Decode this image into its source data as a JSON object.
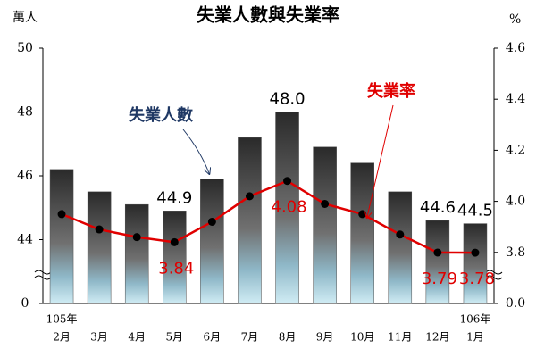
{
  "chart_data": {
    "type": "bar_line",
    "title": "失業人數與失業率",
    "y_label": "萬人",
    "y2_label": "%",
    "categories": [
      "2月",
      "3月",
      "4月",
      "5月",
      "6月",
      "7月",
      "8月",
      "9月",
      "10月",
      "11月",
      "12月",
      "1月"
    ],
    "category_years": [
      "105年",
      null,
      null,
      null,
      null,
      null,
      null,
      null,
      null,
      null,
      null,
      "106年"
    ],
    "ylim": [
      0,
      50
    ],
    "yticks": [
      0,
      44,
      46,
      48,
      50
    ],
    "y2lim": [
      0,
      4.6
    ],
    "y2ticks": [
      {
        "value": 0,
        "label": "0.0"
      },
      3.8,
      {
        "value": 4,
        "label": "4.0"
      },
      4.2,
      4.4,
      4.6
    ],
    "axis_break": true,
    "series": [
      {
        "name": "失業人數",
        "type": "bar",
        "color": "#4a4a4a",
        "values": [
          46.2,
          45.5,
          45.1,
          44.9,
          45.9,
          47.2,
          48.0,
          46.9,
          46.4,
          45.5,
          44.6,
          44.5
        ],
        "value_labels": [
          null,
          null,
          null,
          "44.9",
          null,
          null,
          "48.0",
          null,
          null,
          null,
          "44.6",
          "44.5"
        ]
      },
      {
        "name": "失業率",
        "type": "line",
        "axis": "y2",
        "color": "#e00000",
        "values": [
          3.95,
          3.89,
          3.86,
          3.84,
          3.92,
          4.02,
          4.08,
          3.99,
          3.95,
          3.87,
          3.79,
          3.78
        ],
        "value_labels": [
          null,
          null,
          null,
          "3.84",
          null,
          null,
          "4.08",
          null,
          null,
          null,
          "3.79",
          "3.78"
        ]
      }
    ]
  }
}
